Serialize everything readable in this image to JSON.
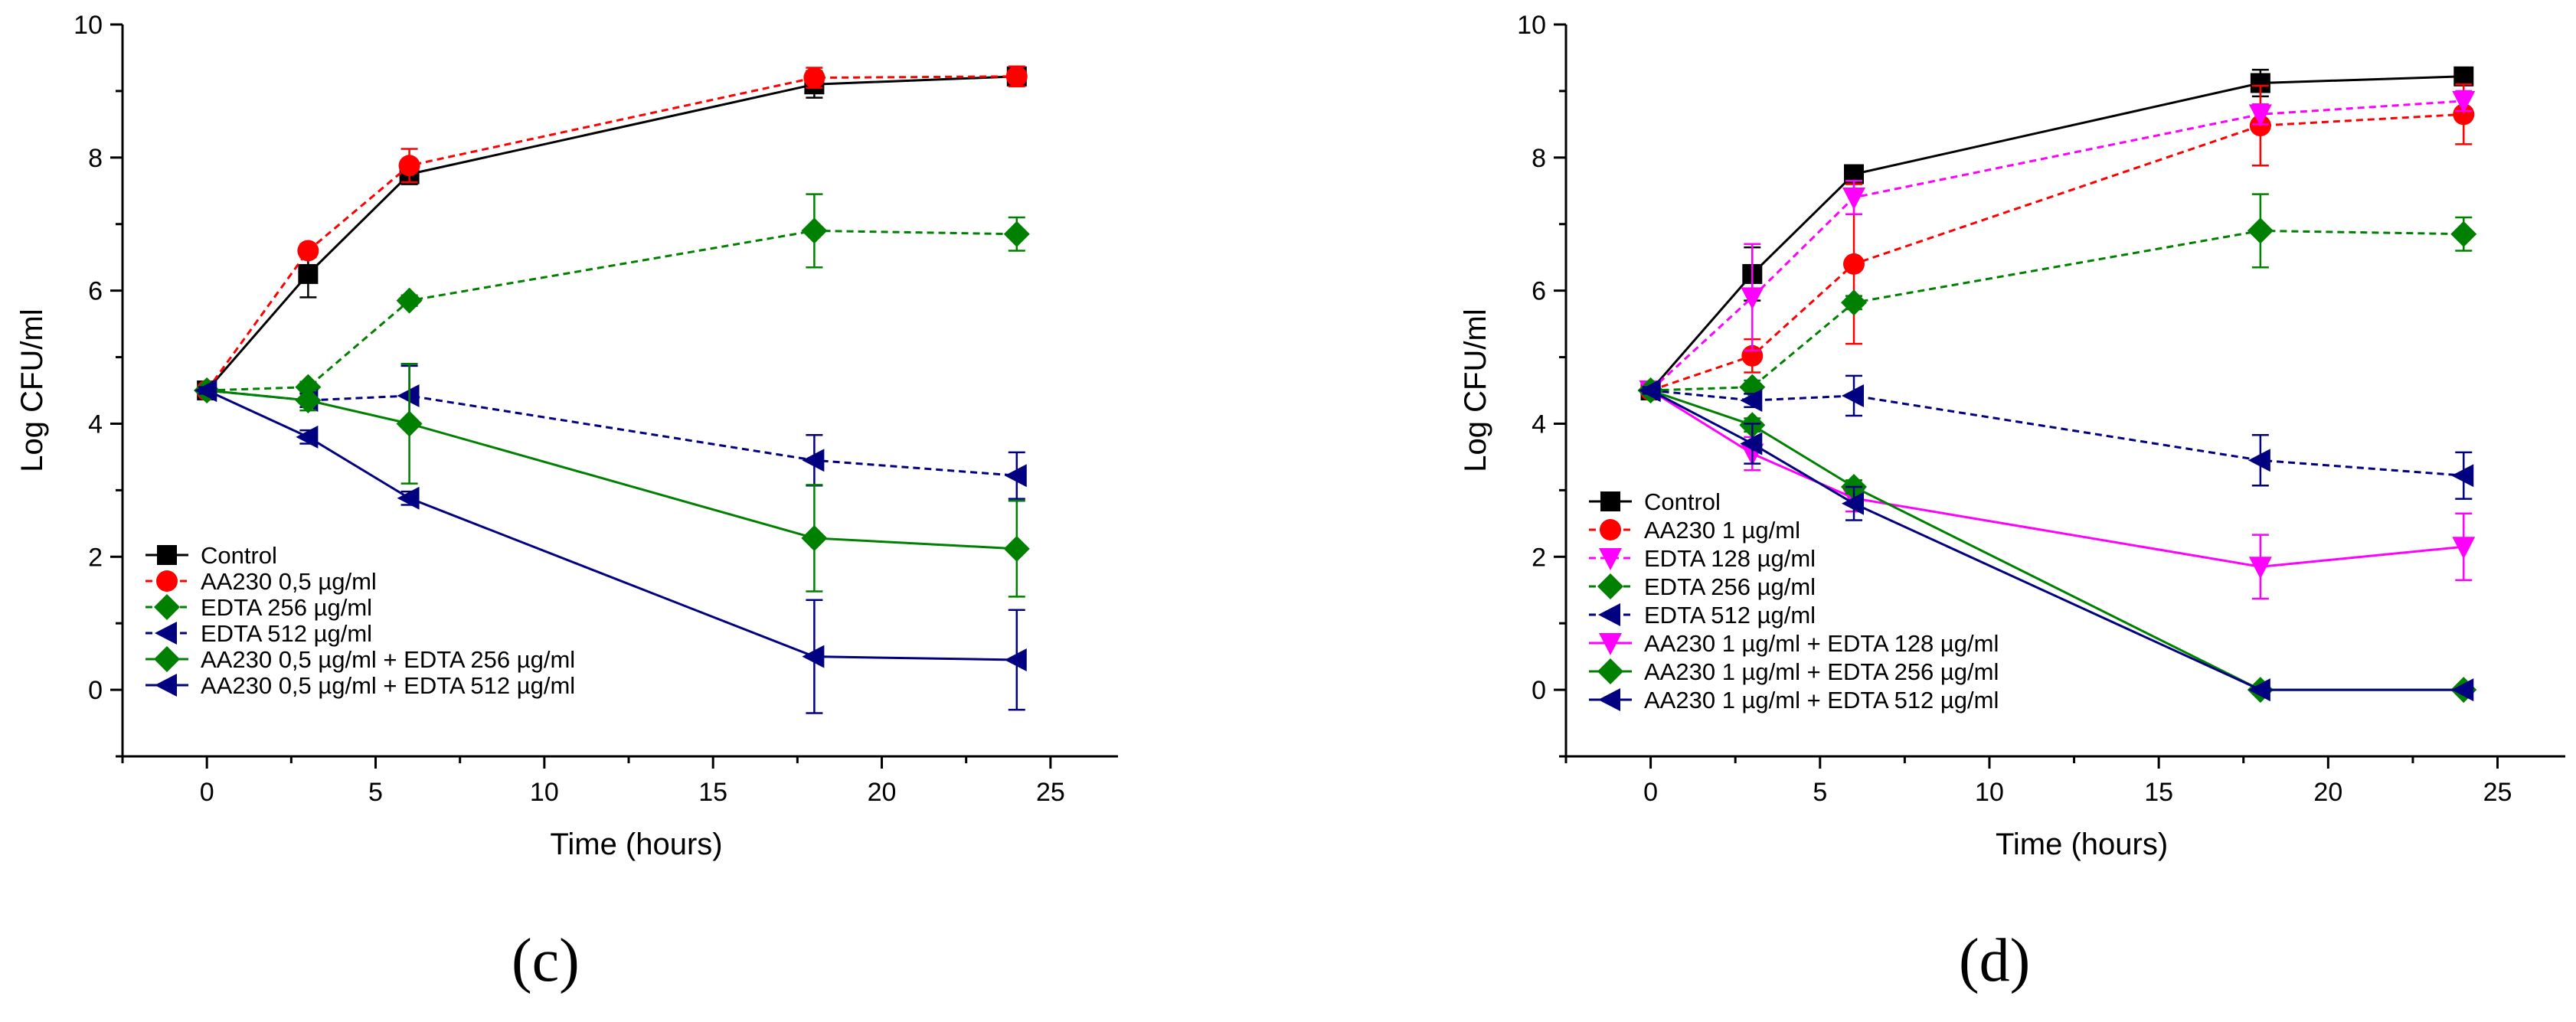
{
  "panels": [
    {
      "label": "(c)"
    },
    {
      "label": "(d)"
    }
  ],
  "chart_data": [
    {
      "id": "c",
      "type": "line",
      "xlabel": "Time (hours)",
      "ylabel": "Log CFU/ml",
      "xlim": [
        -2.5,
        27
      ],
      "ylim": [
        -1,
        10
      ],
      "xticks": [
        0,
        5,
        10,
        15,
        20,
        25
      ],
      "yticks": [
        0,
        2,
        4,
        6,
        8,
        10
      ],
      "x": [
        0,
        3,
        6,
        18,
        24
      ],
      "legend_position": "bottom-left",
      "series": [
        {
          "name": "Control",
          "color": "#000000",
          "dashed": false,
          "marker": "square",
          "values": [
            4.5,
            6.25,
            7.75,
            9.1,
            9.22
          ],
          "errors": [
            0.05,
            0.35,
            0.15,
            0.2,
            0.1
          ]
        },
        {
          "name": "AA230 0,5 µg/ml",
          "color": "#ff0000",
          "dashed": true,
          "marker": "circle",
          "values": [
            4.5,
            6.6,
            7.88,
            9.2,
            9.22
          ],
          "errors": [
            0.05,
            0.1,
            0.25,
            0.15,
            0.15
          ]
        },
        {
          "name": "EDTA 256 µg/ml",
          "color": "#008000",
          "dashed": true,
          "marker": "diamond",
          "values": [
            4.5,
            4.55,
            5.85,
            6.9,
            6.85
          ],
          "errors": [
            0.05,
            0.08,
            0.08,
            0.55,
            0.25
          ]
        },
        {
          "name": "EDTA 512 µg/ml",
          "color": "#000080",
          "dashed": true,
          "marker": "triangle-left",
          "values": [
            4.5,
            4.35,
            4.42,
            3.45,
            3.22
          ],
          "errors": [
            0.05,
            0.1,
            0.45,
            0.38,
            0.35
          ]
        },
        {
          "name": "AA230 0,5 µg/ml + EDTA 256 µg/ml",
          "color": "#008000",
          "dashed": false,
          "marker": "diamond",
          "values": [
            4.5,
            4.35,
            4.0,
            2.28,
            2.12
          ],
          "errors": [
            0.05,
            0.15,
            0.9,
            0.8,
            0.72
          ]
        },
        {
          "name": "AA230 0,5 µg/ml + EDTA 512 µg/ml",
          "color": "#000080",
          "dashed": false,
          "marker": "triangle-left",
          "values": [
            4.5,
            3.8,
            2.88,
            0.5,
            0.45
          ],
          "errors": [
            0.05,
            0.1,
            0.1,
            0.85,
            0.75
          ]
        }
      ]
    },
    {
      "id": "d",
      "type": "line",
      "xlabel": "Time (hours)",
      "ylabel": "Log CFU/ml",
      "xlim": [
        -2.5,
        27
      ],
      "ylim": [
        -1,
        10
      ],
      "xticks": [
        0,
        5,
        10,
        15,
        20,
        25
      ],
      "yticks": [
        0,
        2,
        4,
        6,
        8,
        10
      ],
      "x": [
        0,
        3,
        6,
        18,
        24
      ],
      "legend_position": "bottom-left",
      "series": [
        {
          "name": "Control",
          "color": "#000000",
          "dashed": false,
          "marker": "square",
          "values": [
            4.5,
            6.25,
            7.75,
            9.12,
            9.22
          ],
          "errors": [
            0.05,
            0.4,
            0.1,
            0.2,
            0.1
          ]
        },
        {
          "name": "AA230 1 µg/ml",
          "color": "#ff0000",
          "dashed": true,
          "marker": "circle",
          "values": [
            4.5,
            5.02,
            6.4,
            8.48,
            8.65
          ],
          "errors": [
            0.05,
            0.25,
            1.2,
            0.6,
            0.45
          ]
        },
        {
          "name": "EDTA 128 µg/ml",
          "color": "#ff00ff",
          "dashed": true,
          "marker": "triangle-down",
          "values": [
            4.5,
            5.9,
            7.4,
            8.65,
            8.85
          ],
          "errors": [
            0.05,
            0.8,
            0.25,
            0.15,
            0.15
          ]
        },
        {
          "name": "EDTA 256 µg/ml",
          "color": "#008000",
          "dashed": true,
          "marker": "diamond",
          "values": [
            4.5,
            4.55,
            5.82,
            6.9,
            6.85
          ],
          "errors": [
            0.05,
            0.1,
            0.1,
            0.55,
            0.25
          ]
        },
        {
          "name": "EDTA 512 µg/ml",
          "color": "#000080",
          "dashed": true,
          "marker": "triangle-left",
          "values": [
            4.5,
            4.35,
            4.42,
            3.45,
            3.22
          ],
          "errors": [
            0.05,
            0.1,
            0.3,
            0.38,
            0.35
          ]
        },
        {
          "name": "AA230 1 µg/ml + EDTA 128 µg/ml",
          "color": "#ff00ff",
          "dashed": false,
          "marker": "triangle-down",
          "values": [
            4.5,
            3.55,
            2.88,
            1.85,
            2.15
          ],
          "errors": [
            0.05,
            0.25,
            0.2,
            0.48,
            0.5
          ]
        },
        {
          "name": "AA230 1 µg/ml + EDTA 256 µg/ml",
          "color": "#008000",
          "dashed": false,
          "marker": "diamond",
          "values": [
            4.5,
            3.98,
            3.05,
            0.0,
            0.0
          ],
          "errors": [
            0.05,
            0.1,
            0.1,
            0.0,
            0.0
          ]
        },
        {
          "name": "AA230 1 µg/ml + EDTA 512 µg/ml",
          "color": "#000080",
          "dashed": false,
          "marker": "triangle-left",
          "values": [
            4.5,
            3.7,
            2.8,
            0.0,
            0.0
          ],
          "errors": [
            0.05,
            0.3,
            0.25,
            0.0,
            0.0
          ]
        }
      ]
    }
  ]
}
